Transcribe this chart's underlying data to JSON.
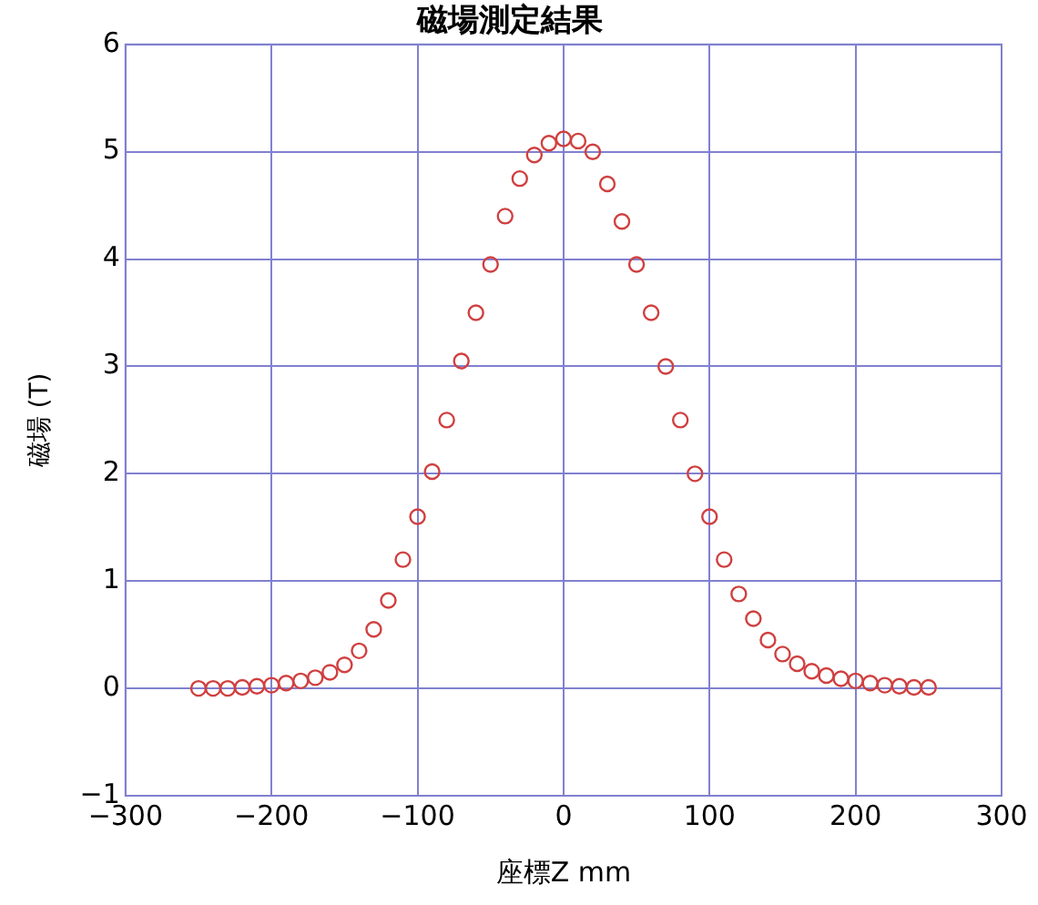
{
  "chart_data": {
    "type": "scatter",
    "title": "磁場測定結果",
    "xlabel": "座標Z mm",
    "ylabel": "磁場 (T)",
    "x": [
      -250,
      -240,
      -230,
      -220,
      -210,
      -200,
      -190,
      -180,
      -170,
      -160,
      -150,
      -140,
      -130,
      -120,
      -110,
      -100,
      -90,
      -80,
      -70,
      -60,
      -50,
      -40,
      -30,
      -20,
      -10,
      0,
      10,
      20,
      30,
      40,
      50,
      60,
      70,
      80,
      90,
      100,
      110,
      120,
      130,
      140,
      150,
      160,
      170,
      180,
      190,
      200,
      210,
      220,
      230,
      240,
      250
    ],
    "series": [
      {
        "color": "#d04040",
        "values": [
          0,
          0,
          0,
          0.01,
          0.02,
          0.03,
          0.05,
          0.07,
          0.1,
          0.15,
          0.22,
          0.35,
          0.55,
          0.82,
          1.2,
          1.6,
          2.02,
          2.5,
          3.05,
          3.5,
          3.95,
          4.4,
          4.75,
          4.97,
          5.08,
          5.12,
          5.1,
          5.0,
          4.7,
          4.35,
          3.95,
          3.5,
          3.0,
          2.5,
          2.0,
          1.6,
          1.2,
          0.88,
          0.65,
          0.45,
          0.32,
          0.23,
          0.16,
          0.12,
          0.09,
          0.07,
          0.05,
          0.03,
          0.02,
          0.01,
          0.01
        ]
      }
    ],
    "xlim": [
      -300,
      300
    ],
    "xticks": [
      -300,
      -200,
      -100,
      0,
      100,
      200,
      300
    ],
    "ylim": [
      -1,
      6
    ],
    "yticks": [
      -1,
      0,
      1,
      2,
      3,
      4,
      5,
      6
    ],
    "grid": true,
    "marker": "circle",
    "legend": false
  }
}
